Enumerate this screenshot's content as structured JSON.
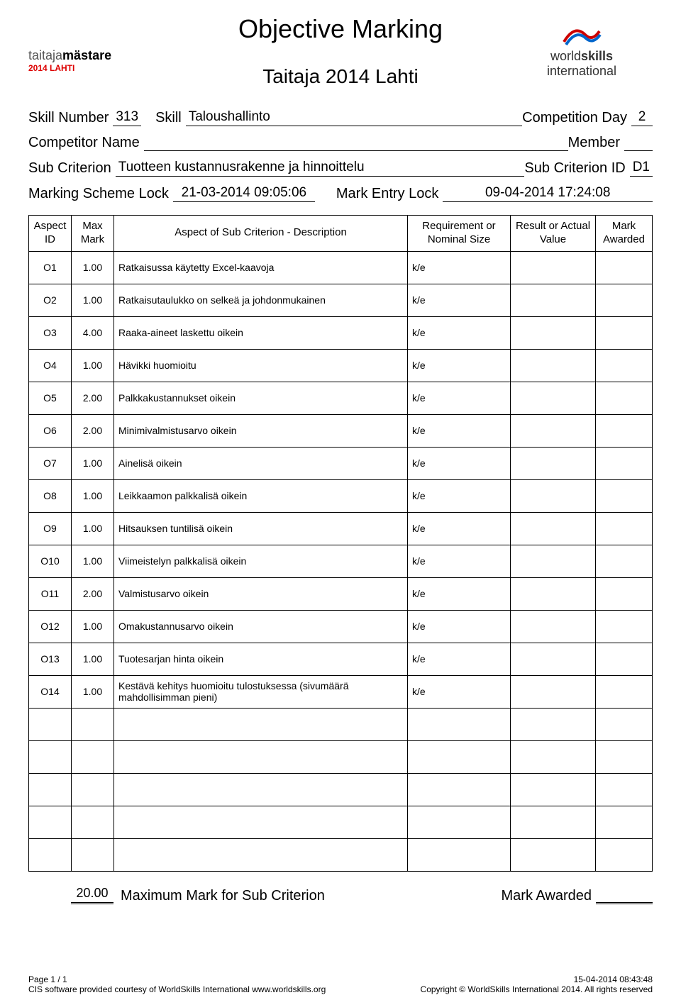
{
  "title_main": "Objective Marking",
  "title_sub": "Taitaja 2014 Lahti",
  "logo_left_line1_light": "taitaja",
  "logo_left_line1_bold": "mästare",
  "logo_left_line2": "2014 LAHTI",
  "logo_right_line1": "world",
  "logo_right_line1b": "skills",
  "logo_right_line2": "international",
  "meta": {
    "skill_number_label": "Skill Number",
    "skill_number": "313",
    "skill_label": "Skill",
    "skill_name": "Taloushallinto",
    "comp_day_label": "Competition Day",
    "comp_day": "2",
    "competitor_label": "Competitor Name",
    "competitor_name": "",
    "member_label": "Member",
    "member": "",
    "sub_crit_label": "Sub Criterion",
    "sub_crit_name": "Tuotteen kustannusrakenne ja hinnoittelu",
    "sub_crit_id_label": "Sub Criterion ID",
    "sub_crit_id": "D1",
    "msl_label": "Marking Scheme Lock",
    "msl_value": "21-03-2014  09:05:06",
    "mel_label": "Mark Entry Lock",
    "mel_value": "09-04-2014  17:24:08"
  },
  "table": {
    "headers": {
      "id": "Aspect\nID",
      "max": "Max\nMark",
      "desc": "Aspect of Sub Criterion - Description",
      "req": "Requirement or\nNominal Size",
      "res": "Result or Actual\nValue",
      "awd": "Mark\nAwarded"
    },
    "rows": [
      {
        "id": "O1",
        "max": "1.00",
        "desc": "Ratkaisussa käytetty Excel-kaavoja",
        "req": "k/e"
      },
      {
        "id": "O2",
        "max": "1.00",
        "desc": "Ratkaisutaulukko on selkeä ja johdonmukainen",
        "req": "k/e"
      },
      {
        "id": "O3",
        "max": "4.00",
        "desc": "Raaka-aineet laskettu oikein",
        "req": "k/e"
      },
      {
        "id": "O4",
        "max": "1.00",
        "desc": "Hävikki huomioitu",
        "req": "k/e"
      },
      {
        "id": "O5",
        "max": "2.00",
        "desc": "Palkkakustannukset oikein",
        "req": "k/e"
      },
      {
        "id": "O6",
        "max": "2.00",
        "desc": "Minimivalmistusarvo oikein",
        "req": "k/e"
      },
      {
        "id": "O7",
        "max": "1.00",
        "desc": "Ainelisä oikein",
        "req": "k/e"
      },
      {
        "id": "O8",
        "max": "1.00",
        "desc": "Leikkaamon palkkalisä oikein",
        "req": "k/e"
      },
      {
        "id": "O9",
        "max": "1.00",
        "desc": "Hitsauksen tuntilisä oikein",
        "req": "k/e"
      },
      {
        "id": "O10",
        "max": "1.00",
        "desc": "Viimeistelyn palkkalisä oikein",
        "req": "k/e"
      },
      {
        "id": "O11",
        "max": "2.00",
        "desc": "Valmistusarvo oikein",
        "req": "k/e"
      },
      {
        "id": "O12",
        "max": "1.00",
        "desc": "Omakustannusarvo oikein",
        "req": "k/e"
      },
      {
        "id": "O13",
        "max": "1.00",
        "desc": "Tuotesarjan hinta oikein",
        "req": "k/e"
      },
      {
        "id": "O14",
        "max": "1.00",
        "desc": "Kestävä kehitys huomioitu tulostuksessa (sivumäärä mahdollisimman pieni)",
        "req": "k/e"
      }
    ],
    "empty_rows": 5
  },
  "totals": {
    "max_value": "20.00",
    "max_label": "Maximum Mark for Sub Criterion",
    "awd_label": "Mark Awarded"
  },
  "footer": {
    "page": "Page 1 / 1",
    "timestamp": "15-04-2014  08:43:48",
    "provided": "CIS software provided courtesy of WorldSkills International www.worldskills.org",
    "copyright": "Copyright © WorldSkills International 2014. All rights reserved"
  }
}
